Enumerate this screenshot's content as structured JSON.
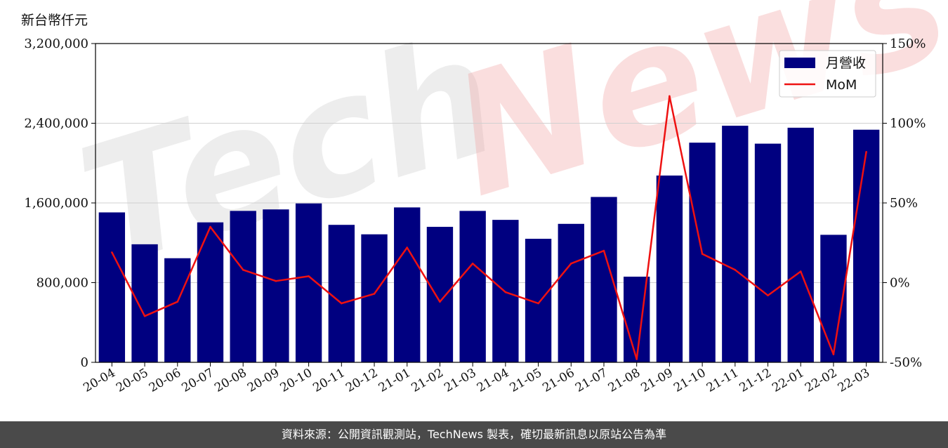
{
  "unit_label": "新台幣仟元",
  "footer_text": "資料來源：公開資訊觀測站，TechNews 製表，確切最新訊息以原站公告為準",
  "watermark": {
    "text_a": "Tech",
    "text_b": "News"
  },
  "colors": {
    "bar": "#000080",
    "line": "#ee1111",
    "grid": "#d0d0d0",
    "footer_bg": "#4a4a4a"
  },
  "chart_data": {
    "type": "bar",
    "categories": [
      "20-04",
      "20-05",
      "20-06",
      "20-07",
      "20-08",
      "20-09",
      "20-10",
      "20-11",
      "20-12",
      "21-01",
      "21-02",
      "21-03",
      "21-04",
      "21-05",
      "21-06",
      "21-07",
      "21-08",
      "21-09",
      "21-10",
      "21-11",
      "21-12",
      "22-01",
      "22-02",
      "22-03"
    ],
    "series": [
      {
        "name": "月營收",
        "type": "bar",
        "axis": "left",
        "values": [
          1505000,
          1185000,
          1045000,
          1405000,
          1520000,
          1535000,
          1595000,
          1380000,
          1285000,
          1555000,
          1360000,
          1520000,
          1430000,
          1240000,
          1390000,
          1660000,
          860000,
          1875000,
          2205000,
          2375000,
          2195000,
          2355000,
          1280000,
          2335000
        ]
      },
      {
        "name": "MoM",
        "type": "line",
        "axis": "right",
        "values": [
          19,
          -21,
          -12,
          35,
          8,
          1,
          4,
          -13,
          -7,
          22,
          -12,
          12,
          -6,
          -13,
          12,
          20,
          -48,
          117,
          18,
          8,
          -8,
          7,
          -45,
          82
        ]
      }
    ],
    "y_left": {
      "ylim": [
        0,
        3200000
      ],
      "ticks": [
        "0",
        "800,000",
        "1,600,000",
        "2,400,000",
        "3,200,000"
      ],
      "tick_values": [
        0,
        800000,
        1600000,
        2400000,
        3200000
      ]
    },
    "y_right": {
      "ylim": [
        -50,
        150
      ],
      "ticks": [
        "-50%",
        "0%",
        "50%",
        "100%",
        "150%"
      ],
      "tick_values": [
        -50,
        0,
        50,
        100,
        150
      ]
    },
    "grid": "horizontal",
    "legend": "top-right"
  }
}
